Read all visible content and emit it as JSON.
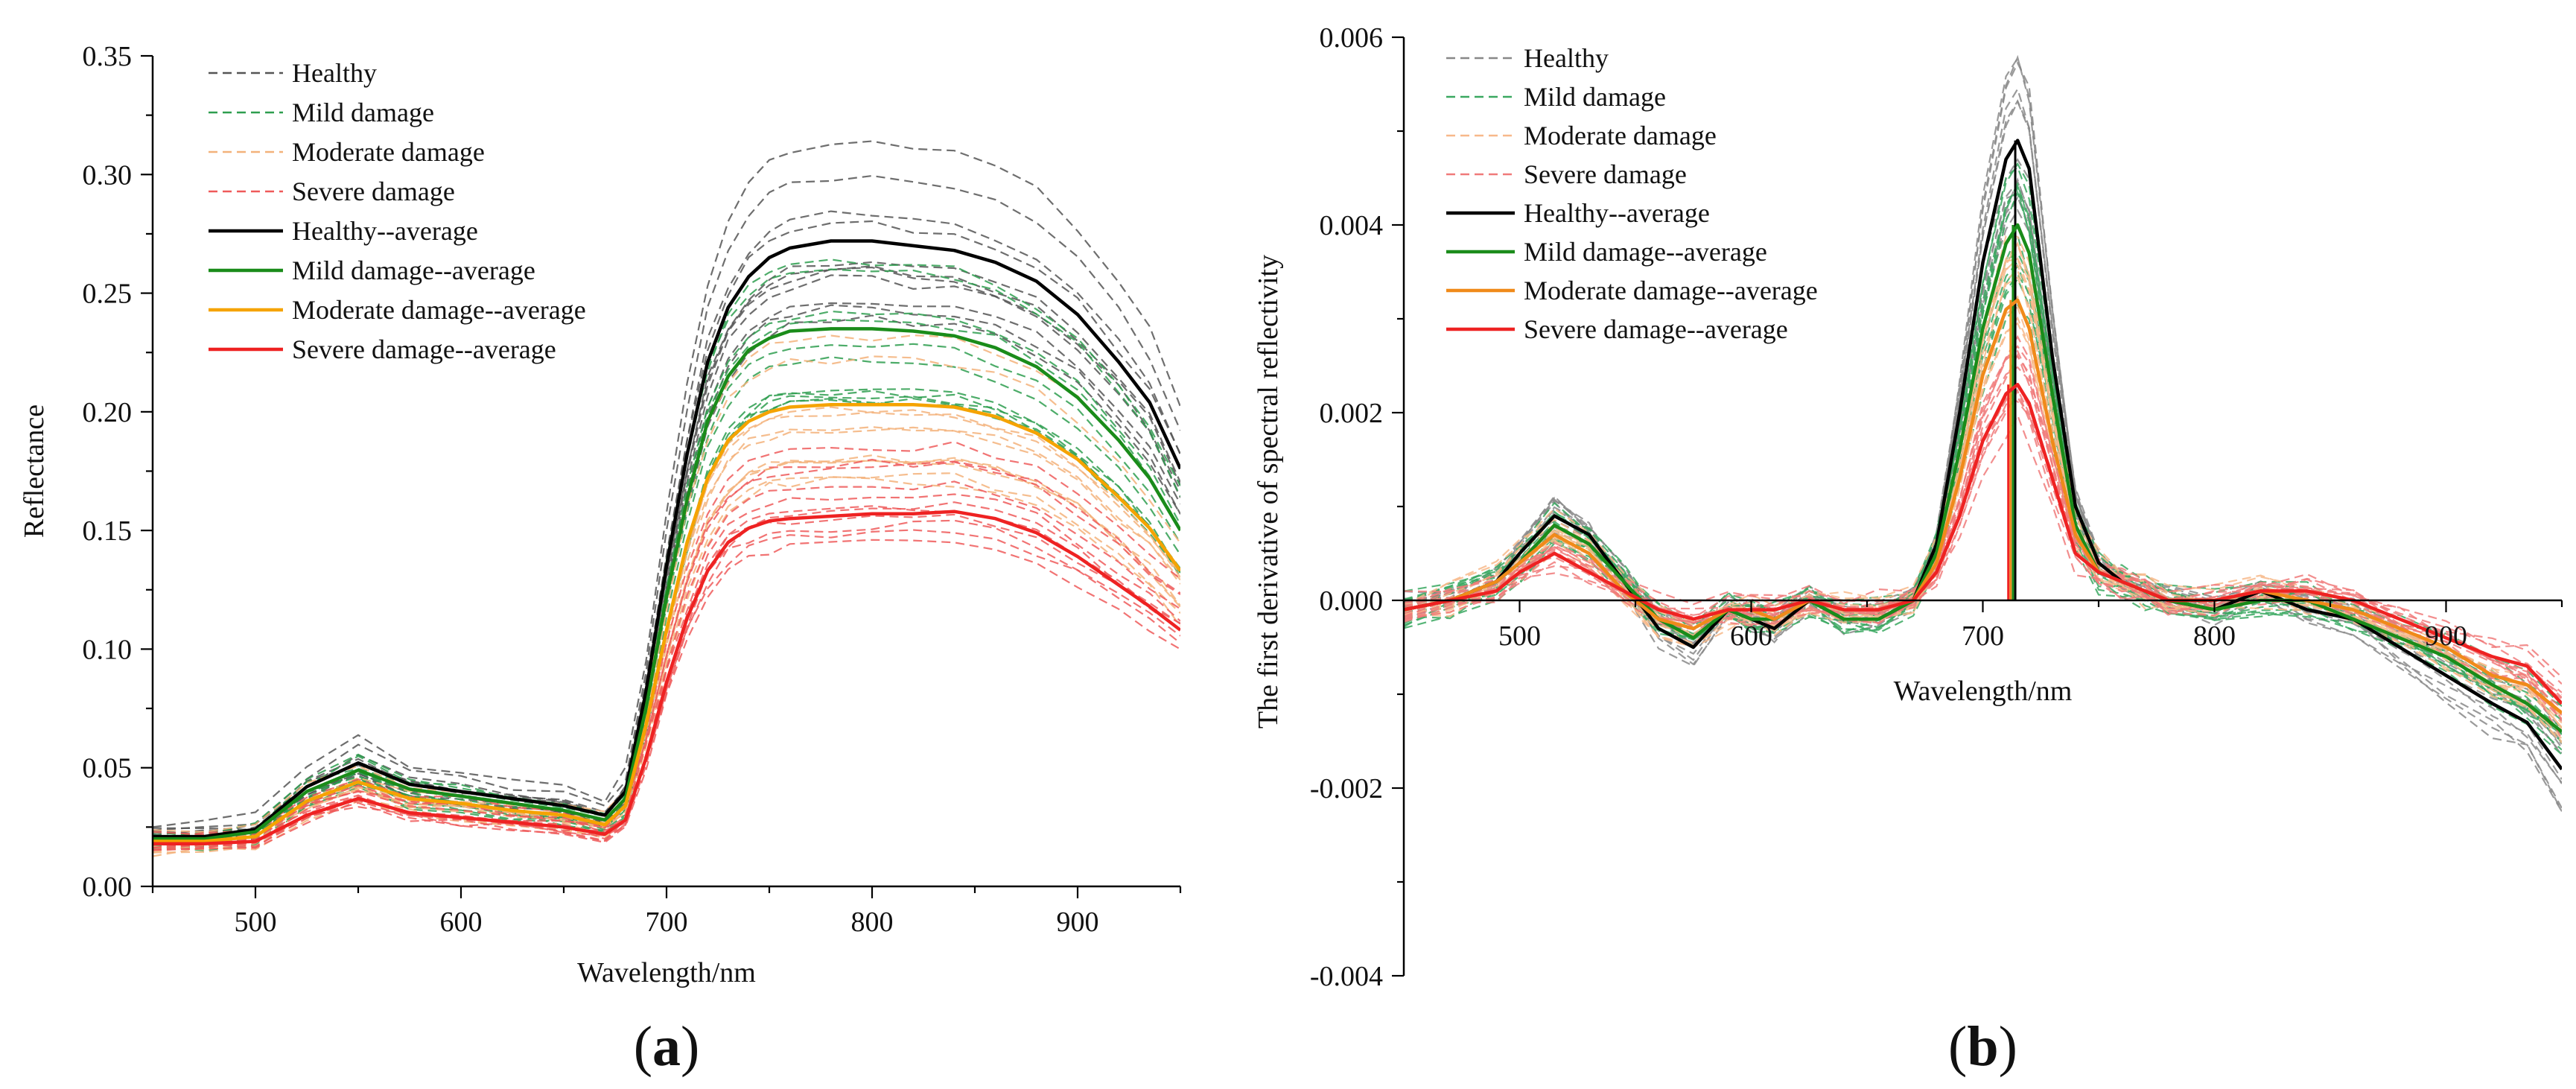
{
  "chart_data": [
    {
      "type": "line",
      "panel_label": {
        "open": "(",
        "letter": "a",
        "close": ")"
      },
      "xlabel": "Wavelength/nm",
      "ylabel": "Reflectance",
      "xlim": [
        450,
        950
      ],
      "ylim": [
        0,
        0.35
      ],
      "xticks": [
        500,
        600,
        700,
        800,
        900
      ],
      "xtick_labels": [
        "500",
        "600",
        "700",
        "800",
        "900"
      ],
      "yticks": [
        0,
        0.05,
        0.1,
        0.15,
        0.2,
        0.25,
        0.3,
        0.35
      ],
      "ytick_labels": [
        "0.00",
        "0.05",
        "0.10",
        "0.15",
        "0.20",
        "0.25",
        "0.30",
        "0.35"
      ],
      "legend_position": "top-left",
      "legend": [
        {
          "label": "Healthy",
          "color": "#555555",
          "style": "dashed"
        },
        {
          "label": "Mild damage",
          "color": "#2e9e4f",
          "style": "dashed"
        },
        {
          "label": "Moderate damage",
          "color": "#f3b27a",
          "style": "dashed"
        },
        {
          "label": "Severe damage",
          "color": "#ef5a5a",
          "style": "dashed"
        },
        {
          "label": "Healthy--average",
          "color": "#000000",
          "style": "solid"
        },
        {
          "label": "Mild damage--average",
          "color": "#1a8c1a",
          "style": "solid"
        },
        {
          "label": "Moderate damage--average",
          "color": "#f5a300",
          "style": "solid"
        },
        {
          "label": "Severe damage--average",
          "color": "#ee2222",
          "style": "solid"
        }
      ],
      "x": [
        450,
        475,
        500,
        525,
        550,
        575,
        600,
        625,
        650,
        670,
        680,
        690,
        700,
        710,
        720,
        730,
        740,
        750,
        760,
        780,
        800,
        820,
        840,
        860,
        880,
        900,
        920,
        935,
        950
      ],
      "series": [
        {
          "name": "Healthy--average",
          "color": "#000000",
          "values": [
            0.021,
            0.021,
            0.024,
            0.042,
            0.052,
            0.043,
            0.04,
            0.037,
            0.034,
            0.03,
            0.04,
            0.082,
            0.135,
            0.182,
            0.221,
            0.244,
            0.257,
            0.265,
            0.269,
            0.272,
            0.272,
            0.27,
            0.268,
            0.263,
            0.255,
            0.241,
            0.221,
            0.204,
            0.176
          ]
        },
        {
          "name": "Mild damage--average",
          "color": "#1a8c1a",
          "values": [
            0.02,
            0.02,
            0.023,
            0.04,
            0.049,
            0.041,
            0.038,
            0.035,
            0.032,
            0.028,
            0.037,
            0.075,
            0.122,
            0.163,
            0.196,
            0.215,
            0.226,
            0.231,
            0.234,
            0.235,
            0.235,
            0.234,
            0.232,
            0.227,
            0.219,
            0.206,
            0.188,
            0.172,
            0.15
          ]
        },
        {
          "name": "Moderate damage--average",
          "color": "#f5a300",
          "values": [
            0.019,
            0.019,
            0.021,
            0.036,
            0.044,
            0.037,
            0.035,
            0.032,
            0.03,
            0.026,
            0.034,
            0.068,
            0.108,
            0.145,
            0.172,
            0.188,
            0.196,
            0.2,
            0.202,
            0.203,
            0.203,
            0.203,
            0.202,
            0.198,
            0.191,
            0.18,
            0.164,
            0.151,
            0.133
          ]
        },
        {
          "name": "Severe damage--average",
          "color": "#ee2222",
          "values": [
            0.018,
            0.018,
            0.019,
            0.03,
            0.037,
            0.031,
            0.029,
            0.027,
            0.025,
            0.022,
            0.028,
            0.054,
            0.086,
            0.113,
            0.133,
            0.145,
            0.151,
            0.154,
            0.155,
            0.156,
            0.157,
            0.157,
            0.158,
            0.155,
            0.149,
            0.139,
            0.127,
            0.118,
            0.108
          ]
        }
      ]
    },
    {
      "type": "line",
      "panel_label": {
        "open": "(",
        "letter": "b",
        "close": ")"
      },
      "xlabel": "Wavelength/nm",
      "ylabel": "The first derivative of spectral reflectivity",
      "xlim": [
        450,
        950
      ],
      "ylim": [
        -0.004,
        0.006
      ],
      "xticks": [
        500,
        600,
        700,
        800,
        900
      ],
      "xtick_labels": [
        "500",
        "600",
        "700",
        "800",
        "900"
      ],
      "yticks": [
        -0.004,
        -0.002,
        0,
        0.002,
        0.004,
        0.006
      ],
      "ytick_labels": [
        "-0.004",
        "-0.002",
        "0.000",
        "0.002",
        "0.004",
        "0.006"
      ],
      "legend_position": "top-left",
      "legend": [
        {
          "label": "Healthy",
          "color": "#888888",
          "style": "dashed"
        },
        {
          "label": "Mild damage",
          "color": "#3aa860",
          "style": "dashed"
        },
        {
          "label": "Moderate damage",
          "color": "#f7b88a",
          "style": "dashed"
        },
        {
          "label": "Severe damage",
          "color": "#f07a7a",
          "style": "dashed"
        },
        {
          "label": "Healthy--average",
          "color": "#000000",
          "style": "solid"
        },
        {
          "label": "Mild damage--average",
          "color": "#1a8c1a",
          "style": "solid"
        },
        {
          "label": "Moderate damage--average",
          "color": "#f08a1a",
          "style": "solid"
        },
        {
          "label": "Severe damage--average",
          "color": "#ee2222",
          "style": "solid"
        }
      ],
      "peak_markers": [
        {
          "name": "Healthy",
          "x": 714,
          "color": "#000000"
        },
        {
          "name": "Mild damage",
          "x": 713,
          "color": "#1a8c1a"
        },
        {
          "name": "Moderate damage",
          "x": 712,
          "color": "#f08a1a"
        },
        {
          "name": "Severe damage",
          "x": 711,
          "color": "#ee2222"
        }
      ],
      "x": [
        450,
        470,
        490,
        500,
        515,
        530,
        545,
        560,
        575,
        590,
        600,
        610,
        625,
        640,
        655,
        670,
        680,
        690,
        700,
        710,
        715,
        720,
        730,
        740,
        750,
        760,
        770,
        780,
        800,
        820,
        840,
        860,
        880,
        900,
        920,
        935,
        950
      ],
      "series": [
        {
          "name": "Healthy--average",
          "color": "#000000",
          "values": [
            -0.0001,
            0.0,
            0.0002,
            0.0005,
            0.0009,
            0.0007,
            0.0002,
            -0.0003,
            -0.0005,
            -0.0001,
            -0.0002,
            -0.0003,
            0.0,
            -0.0002,
            -0.0002,
            0.0,
            0.0006,
            0.002,
            0.0036,
            0.0047,
            0.0049,
            0.0046,
            0.0026,
            0.001,
            0.0004,
            0.0002,
            0.0001,
            0.0,
            -0.0001,
            0.0001,
            -0.0001,
            -0.0002,
            -0.0005,
            -0.0008,
            -0.0011,
            -0.0013,
            -0.0018
          ]
        },
        {
          "name": "Mild damage--average",
          "color": "#1a8c1a",
          "values": [
            -0.0001,
            0.0,
            0.0002,
            0.0004,
            0.0008,
            0.0006,
            0.0002,
            -0.0002,
            -0.0004,
            -0.0001,
            -0.0002,
            -0.0002,
            0.0,
            -0.0002,
            -0.0002,
            0.0,
            0.0005,
            0.0016,
            0.0029,
            0.0038,
            0.004,
            0.0037,
            0.0022,
            0.0008,
            0.0003,
            0.0002,
            0.0001,
            0.0,
            -0.0001,
            0.0,
            0.0,
            -0.0002,
            -0.0004,
            -0.0006,
            -0.0009,
            -0.0011,
            -0.0014
          ]
        },
        {
          "name": "Moderate damage--average",
          "color": "#f08a1a",
          "values": [
            -0.0001,
            0.0,
            0.0002,
            0.0004,
            0.0007,
            0.0005,
            0.0001,
            -0.0002,
            -0.0003,
            -0.0001,
            -0.0001,
            -0.0002,
            0.0,
            -0.0001,
            -0.0001,
            0.0,
            0.0004,
            0.0013,
            0.0024,
            0.0031,
            0.0032,
            0.0029,
            0.0017,
            0.0007,
            0.0003,
            0.0002,
            0.0001,
            0.0,
            0.0,
            0.0001,
            0.0,
            -0.0001,
            -0.0003,
            -0.0005,
            -0.0008,
            -0.0009,
            -0.0012
          ]
        },
        {
          "name": "Severe damage--average",
          "color": "#ee2222",
          "values": [
            -0.0001,
            0.0,
            0.0001,
            0.0003,
            0.0005,
            0.0003,
            0.0001,
            -0.0001,
            -0.0002,
            -0.0001,
            -0.0001,
            -0.0001,
            0.0,
            -0.0001,
            -0.0001,
            0.0,
            0.0003,
            0.0009,
            0.0017,
            0.0022,
            0.0023,
            0.0021,
            0.0013,
            0.0005,
            0.0003,
            0.0002,
            0.0001,
            0.0,
            0.0,
            0.0001,
            0.0001,
            0.0,
            -0.0002,
            -0.0004,
            -0.0006,
            -0.0007,
            -0.0011
          ]
        }
      ]
    }
  ]
}
